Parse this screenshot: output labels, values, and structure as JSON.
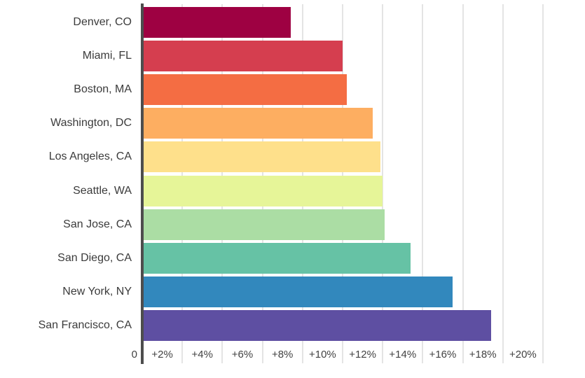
{
  "chart_data": {
    "type": "bar",
    "orientation": "horizontal",
    "categories": [
      "Denver, CO",
      "Miami, FL",
      "Boston, MA",
      "Washington, DC",
      "Los Angeles, CA",
      "Seattle, WA",
      "San Jose, CA",
      "San Diego, CA",
      "New York, NY",
      "San Francisco, CA"
    ],
    "values": [
      7.4,
      10.0,
      10.2,
      11.5,
      11.9,
      12.0,
      12.1,
      13.4,
      15.5,
      17.4
    ],
    "bar_colors": [
      "#9e0142",
      "#d53e4f",
      "#f46d43",
      "#fdae61",
      "#fee08b",
      "#e6f598",
      "#abdda4",
      "#66c2a5",
      "#3288bd",
      "#5e4fa2"
    ],
    "value_unit": "percent",
    "x_axis": {
      "tick_values": [
        0,
        2,
        4,
        6,
        8,
        10,
        12,
        14,
        16,
        18,
        20
      ],
      "tick_labels": [
        "0",
        "+2%",
        "+4%",
        "+6%",
        "+8%",
        "+10%",
        "+12%",
        "+14%",
        "+16%",
        "+18%",
        "+20%"
      ],
      "min": 0,
      "max": 22,
      "grid": true,
      "label_placement": "centered-between-gridlines"
    },
    "legend_position": "none"
  },
  "style": {
    "background": "#ffffff",
    "axis_color": "#4d4d4d",
    "grid_color": "#e4e4e4",
    "category_label_color": "#3b3b3b",
    "tick_label_color": "#424242"
  }
}
